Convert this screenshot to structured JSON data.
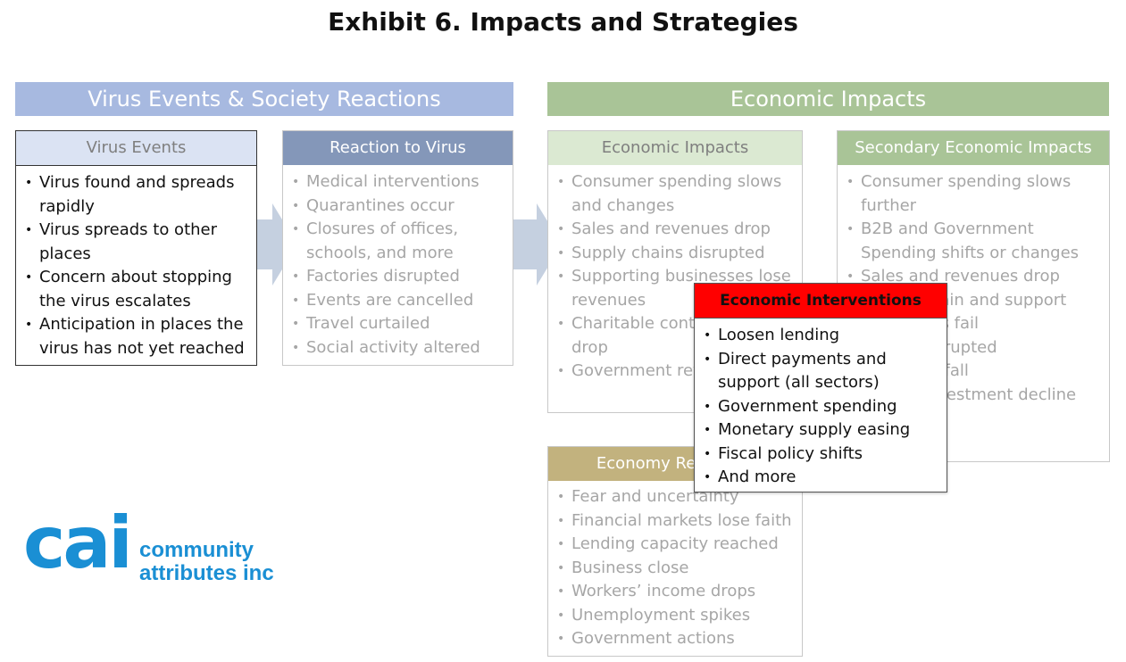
{
  "title": "Exhibit 6. Impacts and Strategies",
  "banners": {
    "left": "Virus Events & Society Reactions",
    "right": "Economic Impacts"
  },
  "boxes": {
    "virus_events": {
      "header": "Virus Events",
      "items": [
        "Virus found and spreads rapidly",
        "Virus spreads to other places",
        "Concern about stopping the virus escalates",
        "Anticipation in places the virus has not yet reached"
      ]
    },
    "reaction": {
      "header": "Reaction to Virus",
      "items": [
        "Medical interventions",
        "Quarantines occur",
        "Closures of offices, schools, and more",
        "Factories disrupted",
        "Events are cancelled",
        "Travel curtailed",
        "Social activity altered"
      ]
    },
    "economic_impacts": {
      "header": "Economic Impacts",
      "items": [
        "Consumer spending slows and changes",
        "Sales and revenues drop",
        "Supply chains disrupted",
        "Supporting businesses lose revenues",
        "Charitable contributions drop",
        "Government revenues fall"
      ]
    },
    "secondary": {
      "header": "Secondary Economic Impacts",
      "items": [
        "Consumer spending slows further",
        "B2B and Government Spending shifts or changes",
        "Sales and revenues drop",
        "Supply chain and support businesses fail",
        "Supply disrupted",
        "Revenues fall",
        "Capital investment decline"
      ]
    },
    "economy_reactions": {
      "header": "Economy Reactions",
      "items": [
        "Fear and uncertainty",
        "Financial markets lose faith",
        "Lending capacity reached",
        "Business close",
        "Workers’ income drops",
        "Unemployment spikes",
        "Government actions"
      ]
    },
    "interventions": {
      "header": "Economic Interventions",
      "items": [
        "Loosen lending",
        "Direct payments and support (all sectors)",
        "Government spending",
        "Monetary supply easing",
        "Fiscal policy shifts",
        "And more"
      ]
    }
  },
  "logo": {
    "mark": "cai",
    "line1": "community",
    "line2": "attributes inc"
  },
  "colors": {
    "banner_left": "#a7b9e0",
    "banner_right": "#a9c497",
    "virus_events_head": "#dbe3f3",
    "reaction_head": "#8497b9",
    "economic_head": "#dbe9d2",
    "secondary_head": "#a9c497",
    "economy_reactions_head": "#c2b27e",
    "interventions_head": "#ff0000",
    "arrow": "#c5d0e0",
    "logo": "#1a8fd4"
  }
}
